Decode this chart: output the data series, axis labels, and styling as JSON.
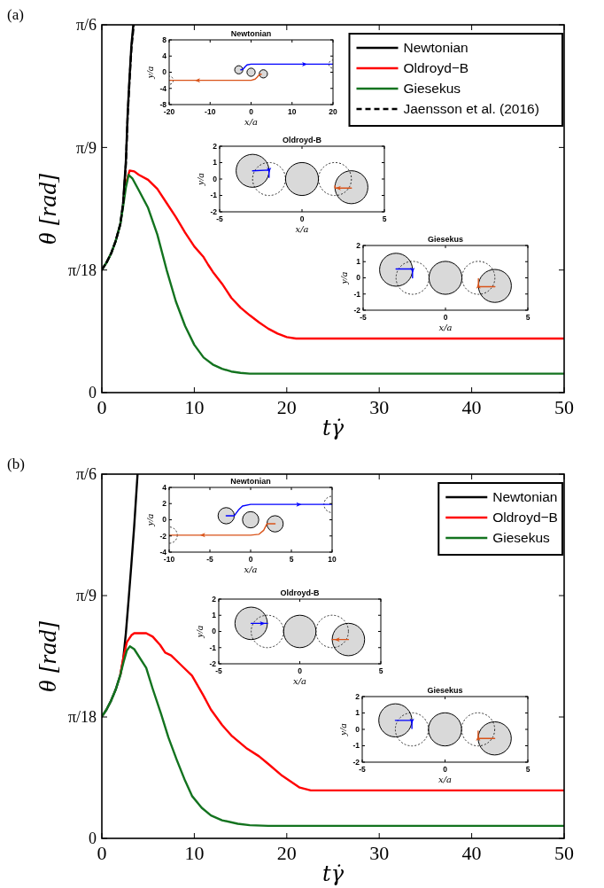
{
  "chart_data": [
    {
      "type": "line",
      "annotations": [
        "(a)"
      ],
      "xlabel": "tγ̇",
      "ylabel": "θ [rad]",
      "xlim": [
        0,
        50
      ],
      "xticks": [
        0,
        10,
        20,
        30,
        40,
        50
      ],
      "ylim": [
        0,
        0.5236
      ],
      "yticks": [
        0,
        {
          "value": 0.1745,
          "label": "π/18"
        },
        {
          "value": 0.349,
          "label": "π/9"
        },
        {
          "value": 0.5236,
          "label": "π/6"
        }
      ],
      "legend": "top right",
      "series": [
        {
          "name": "Newtonian",
          "color": "#000000",
          "x": [
            0,
            0.5,
            1,
            1.5,
            2,
            2.3,
            2.6,
            2.8,
            3.0,
            3.2,
            3.4
          ],
          "values": [
            0.175,
            0.185,
            0.198,
            0.216,
            0.24,
            0.27,
            0.33,
            0.4,
            0.45,
            0.495,
            0.523
          ]
        },
        {
          "name": "Oldroyd−B",
          "color": "#ff0000",
          "x": [
            2.6,
            3.0,
            3.5,
            4,
            5,
            6,
            7,
            8,
            9,
            10,
            11,
            11.5,
            12,
            13,
            14,
            15,
            16,
            17,
            18,
            19,
            20,
            21,
            30,
            40,
            50
          ],
          "values": [
            0.298,
            0.316,
            0.315,
            0.31,
            0.303,
            0.29,
            0.27,
            0.25,
            0.228,
            0.208,
            0.193,
            0.182,
            0.172,
            0.155,
            0.135,
            0.121,
            0.11,
            0.1,
            0.091,
            0.084,
            0.079,
            0.077,
            0.077,
            0.077,
            0.077
          ]
        },
        {
          "name": "Giesekus",
          "color": "#13731f",
          "x": [
            0,
            0.5,
            1,
            1.5,
            2,
            2.3,
            2.6,
            2.9,
            3.3,
            4,
            5,
            6,
            7,
            8,
            9,
            10,
            11,
            12,
            13,
            14,
            15,
            16,
            18,
            20,
            30,
            40,
            50
          ],
          "values": [
            0.175,
            0.185,
            0.198,
            0.216,
            0.24,
            0.265,
            0.292,
            0.31,
            0.305,
            0.288,
            0.263,
            0.225,
            0.175,
            0.13,
            0.095,
            0.068,
            0.05,
            0.04,
            0.034,
            0.03,
            0.028,
            0.027,
            0.027,
            0.027,
            0.027,
            0.027,
            0.027
          ]
        },
        {
          "name": "Jaensson et al. (2016)",
          "color": "#000000",
          "line_style": "dashed",
          "x": [
            0,
            0.5,
            1,
            1.5,
            2,
            2.3,
            2.6,
            2.8,
            3.0,
            3.2,
            3.45
          ],
          "values": [
            0.175,
            0.185,
            0.198,
            0.216,
            0.24,
            0.268,
            0.325,
            0.395,
            0.445,
            0.49,
            0.523
          ]
        }
      ]
    },
    {
      "type": "line",
      "title": "Newtonian",
      "xlabel": "x/a",
      "ylabel": "y/a",
      "xlim": [
        -20,
        20
      ],
      "xticks": [
        -20,
        -10,
        0,
        10,
        20
      ],
      "ylim": [
        -8,
        8
      ],
      "yticks": [
        -8,
        -4,
        0,
        4,
        8
      ],
      "series": [
        {
          "type": "bubble",
          "color": "#d9d9d9",
          "x": [
            -3,
            0,
            3
          ],
          "values": [
            0.6,
            0,
            -0.4
          ],
          "sizes": [
            1,
            1,
            1
          ]
        },
        {
          "type": "bubble",
          "color": "#000000",
          "line_style": "dashed",
          "x": [
            20,
            -20
          ],
          "values": [
            2,
            -2
          ],
          "sizes": [
            1,
            1
          ]
        },
        {
          "color": "#0000ff",
          "x": [
            -2.5,
            -2,
            -1.5,
            -1,
            0,
            5,
            20
          ],
          "values": [
            0.6,
            0.7,
            1.3,
            1.8,
            2,
            2,
            2
          ]
        },
        {
          "color": "#d95319",
          "x": [
            2.5,
            2,
            1.5,
            1,
            0,
            -5,
            -20
          ],
          "values": [
            -0.5,
            -0.6,
            -1.2,
            -1.7,
            -2,
            -2,
            -2
          ]
        }
      ]
    },
    {
      "type": "line",
      "title": "Oldroyd-B",
      "xlabel": "x/a",
      "ylabel": "y/a",
      "xlim": [
        -5,
        5
      ],
      "xticks": [
        -5,
        0,
        5
      ],
      "ylim": [
        -2,
        2
      ],
      "yticks": [
        -2,
        -1,
        0,
        1,
        2
      ],
      "series": [
        {
          "type": "bubble",
          "color": "#d9d9d9",
          "x": [
            -3,
            0,
            3
          ],
          "values": [
            0.5,
            0,
            -0.5
          ],
          "sizes": [
            1,
            1,
            1
          ]
        },
        {
          "type": "bubble",
          "color": "#000000",
          "line_style": "dashed",
          "x": [
            -2,
            2
          ],
          "values": [
            0,
            0
          ],
          "sizes": [
            1,
            1
          ]
        },
        {
          "color": "#0000ff",
          "x": [
            -3,
            -2,
            -2
          ],
          "values": [
            0.5,
            0.55,
            0.1
          ]
        },
        {
          "color": "#d95319",
          "x": [
            3,
            2,
            2
          ],
          "values": [
            -0.55,
            -0.55,
            -0.4
          ]
        }
      ]
    },
    {
      "type": "line",
      "title": "Giesekus",
      "xlabel": "x/a",
      "ylabel": "y/a",
      "xlim": [
        -5,
        5
      ],
      "xticks": [
        -5,
        0,
        5
      ],
      "ylim": [
        -2,
        2
      ],
      "yticks": [
        -2,
        -1,
        0,
        1,
        2
      ],
      "series": [
        {
          "type": "bubble",
          "color": "#d9d9d9",
          "x": [
            -3,
            0,
            3
          ],
          "values": [
            0.5,
            0,
            -0.5
          ],
          "sizes": [
            1,
            1,
            1
          ]
        },
        {
          "type": "bubble",
          "color": "#000000",
          "line_style": "dashed",
          "x": [
            -2,
            2
          ],
          "values": [
            0,
            0
          ],
          "sizes": [
            1,
            1
          ]
        },
        {
          "color": "#0000ff",
          "x": [
            -3,
            -2,
            -2
          ],
          "values": [
            0.55,
            0.55,
            0
          ]
        },
        {
          "color": "#d95319",
          "x": [
            3,
            2,
            2
          ],
          "values": [
            -0.55,
            -0.55,
            -0.05
          ]
        }
      ]
    },
    {
      "type": "line",
      "annotations": [
        "(b)"
      ],
      "xlabel": "tγ̇",
      "ylabel": "θ [rad]",
      "xlim": [
        0,
        50
      ],
      "xticks": [
        0,
        10,
        20,
        30,
        40,
        50
      ],
      "ylim": [
        0,
        0.5236
      ],
      "yticks": [
        0,
        {
          "value": 0.1745,
          "label": "π/18"
        },
        {
          "value": 0.349,
          "label": "π/9"
        },
        {
          "value": 0.5236,
          "label": "π/6"
        }
      ],
      "legend": "top right",
      "series": [
        {
          "name": "Newtonian",
          "color": "#000000",
          "x": [
            0,
            0.5,
            1,
            1.5,
            2,
            2.3,
            2.6,
            2.9,
            3.2,
            3.5,
            3.86
          ],
          "values": [
            0.175,
            0.185,
            0.198,
            0.214,
            0.235,
            0.256,
            0.295,
            0.344,
            0.395,
            0.449,
            0.523
          ]
        },
        {
          "name": "Oldroyd−B",
          "color": "#ff0000",
          "x": [
            2,
            2.3,
            2.7,
            3.2,
            3.5,
            4.8,
            5.5,
            6.3,
            6.85,
            7.5,
            8.5,
            9.75,
            11,
            11.8,
            13,
            14,
            15.6,
            17,
            18,
            19.5,
            21.4,
            22.6,
            30,
            40,
            50
          ],
          "values": [
            0.235,
            0.258,
            0.282,
            0.292,
            0.295,
            0.295,
            0.29,
            0.278,
            0.267,
            0.263,
            0.25,
            0.234,
            0.205,
            0.185,
            0.163,
            0.148,
            0.13,
            0.118,
            0.107,
            0.09,
            0.073,
            0.069,
            0.069,
            0.069,
            0.069
          ]
        },
        {
          "name": "Giesekus",
          "color": "#13731f",
          "x": [
            0,
            0.5,
            1,
            1.5,
            2,
            2.4,
            2.7,
            3.03,
            3.5,
            4.8,
            5.5,
            6.4,
            7.2,
            8.1,
            9,
            9.75,
            10.8,
            11.8,
            13,
            14.7,
            16,
            18,
            20,
            30,
            40,
            50
          ],
          "values": [
            0.175,
            0.185,
            0.198,
            0.214,
            0.235,
            0.256,
            0.27,
            0.276,
            0.272,
            0.245,
            0.215,
            0.179,
            0.145,
            0.113,
            0.083,
            0.061,
            0.044,
            0.033,
            0.026,
            0.021,
            0.019,
            0.018,
            0.018,
            0.018,
            0.018,
            0.018
          ]
        }
      ]
    },
    {
      "type": "line",
      "title": "Newtonian",
      "xlabel": "x/a",
      "ylabel": "y/a",
      "xlim": [
        -10,
        10
      ],
      "xticks": [
        -10,
        -5,
        0,
        5,
        10
      ],
      "ylim": [
        -4,
        4
      ],
      "yticks": [
        -4,
        -2,
        0,
        2,
        4
      ],
      "series": [
        {
          "type": "bubble",
          "color": "#d9d9d9",
          "x": [
            -3,
            0,
            3
          ],
          "values": [
            0.5,
            0,
            -0.5
          ],
          "sizes": [
            1,
            1,
            1
          ]
        },
        {
          "type": "bubble",
          "color": "#000000",
          "line_style": "dashed",
          "x": [
            10,
            -10
          ],
          "values": [
            1.9,
            -1.9
          ],
          "sizes": [
            1,
            1
          ]
        },
        {
          "color": "#0000ff",
          "x": [
            -3,
            -2,
            -1.5,
            -1,
            0,
            5,
            10
          ],
          "values": [
            0.5,
            0.5,
            1.2,
            1.7,
            1.9,
            1.9,
            1.9
          ]
        },
        {
          "color": "#d95319",
          "x": [
            3,
            2,
            1.6,
            1,
            0,
            -5,
            -10
          ],
          "values": [
            -0.5,
            -0.5,
            -1.3,
            -1.8,
            -1.9,
            -1.9,
            -1.9
          ]
        }
      ]
    },
    {
      "type": "line",
      "title": "Oldroyd-B",
      "xlabel": "x/a",
      "ylabel": "y/a",
      "xlim": [
        -5,
        5
      ],
      "xticks": [
        -5,
        0,
        5
      ],
      "ylim": [
        -2,
        2
      ],
      "yticks": [
        -2,
        -1,
        0,
        1,
        2
      ],
      "series": [
        {
          "type": "bubble",
          "color": "#d9d9d9",
          "x": [
            -3,
            0,
            3
          ],
          "values": [
            0.5,
            0,
            -0.5
          ],
          "sizes": [
            1,
            1,
            1
          ]
        },
        {
          "type": "bubble",
          "color": "#000000",
          "line_style": "dashed",
          "x": [
            -2,
            2
          ],
          "values": [
            0,
            0
          ],
          "sizes": [
            1,
            1
          ]
        },
        {
          "color": "#0000ff",
          "x": [
            -3,
            -2
          ],
          "values": [
            0.5,
            0.5
          ]
        },
        {
          "color": "#d95319",
          "x": [
            3,
            2
          ],
          "values": [
            -0.5,
            -0.5
          ]
        }
      ]
    },
    {
      "type": "line",
      "title": "Giesekus",
      "xlabel": "x/a",
      "ylabel": "y/a",
      "xlim": [
        -5,
        5
      ],
      "xticks": [
        -5,
        0,
        5
      ],
      "ylim": [
        -2,
        2
      ],
      "yticks": [
        -2,
        -1,
        0,
        1,
        2
      ],
      "series": [
        {
          "type": "bubble",
          "color": "#d9d9d9",
          "x": [
            -3,
            0,
            3
          ],
          "values": [
            0.55,
            0,
            -0.55
          ],
          "sizes": [
            1,
            1,
            1
          ]
        },
        {
          "type": "bubble",
          "color": "#000000",
          "line_style": "dashed",
          "x": [
            -2,
            2
          ],
          "values": [
            0,
            0
          ],
          "sizes": [
            1,
            1
          ]
        },
        {
          "color": "#0000ff",
          "x": [
            -3,
            -2,
            -2
          ],
          "values": [
            0.55,
            0.55,
            0.05
          ]
        },
        {
          "color": "#d95319",
          "x": [
            3,
            2,
            2
          ],
          "values": [
            -0.55,
            -0.55,
            -0.1
          ]
        }
      ]
    }
  ]
}
